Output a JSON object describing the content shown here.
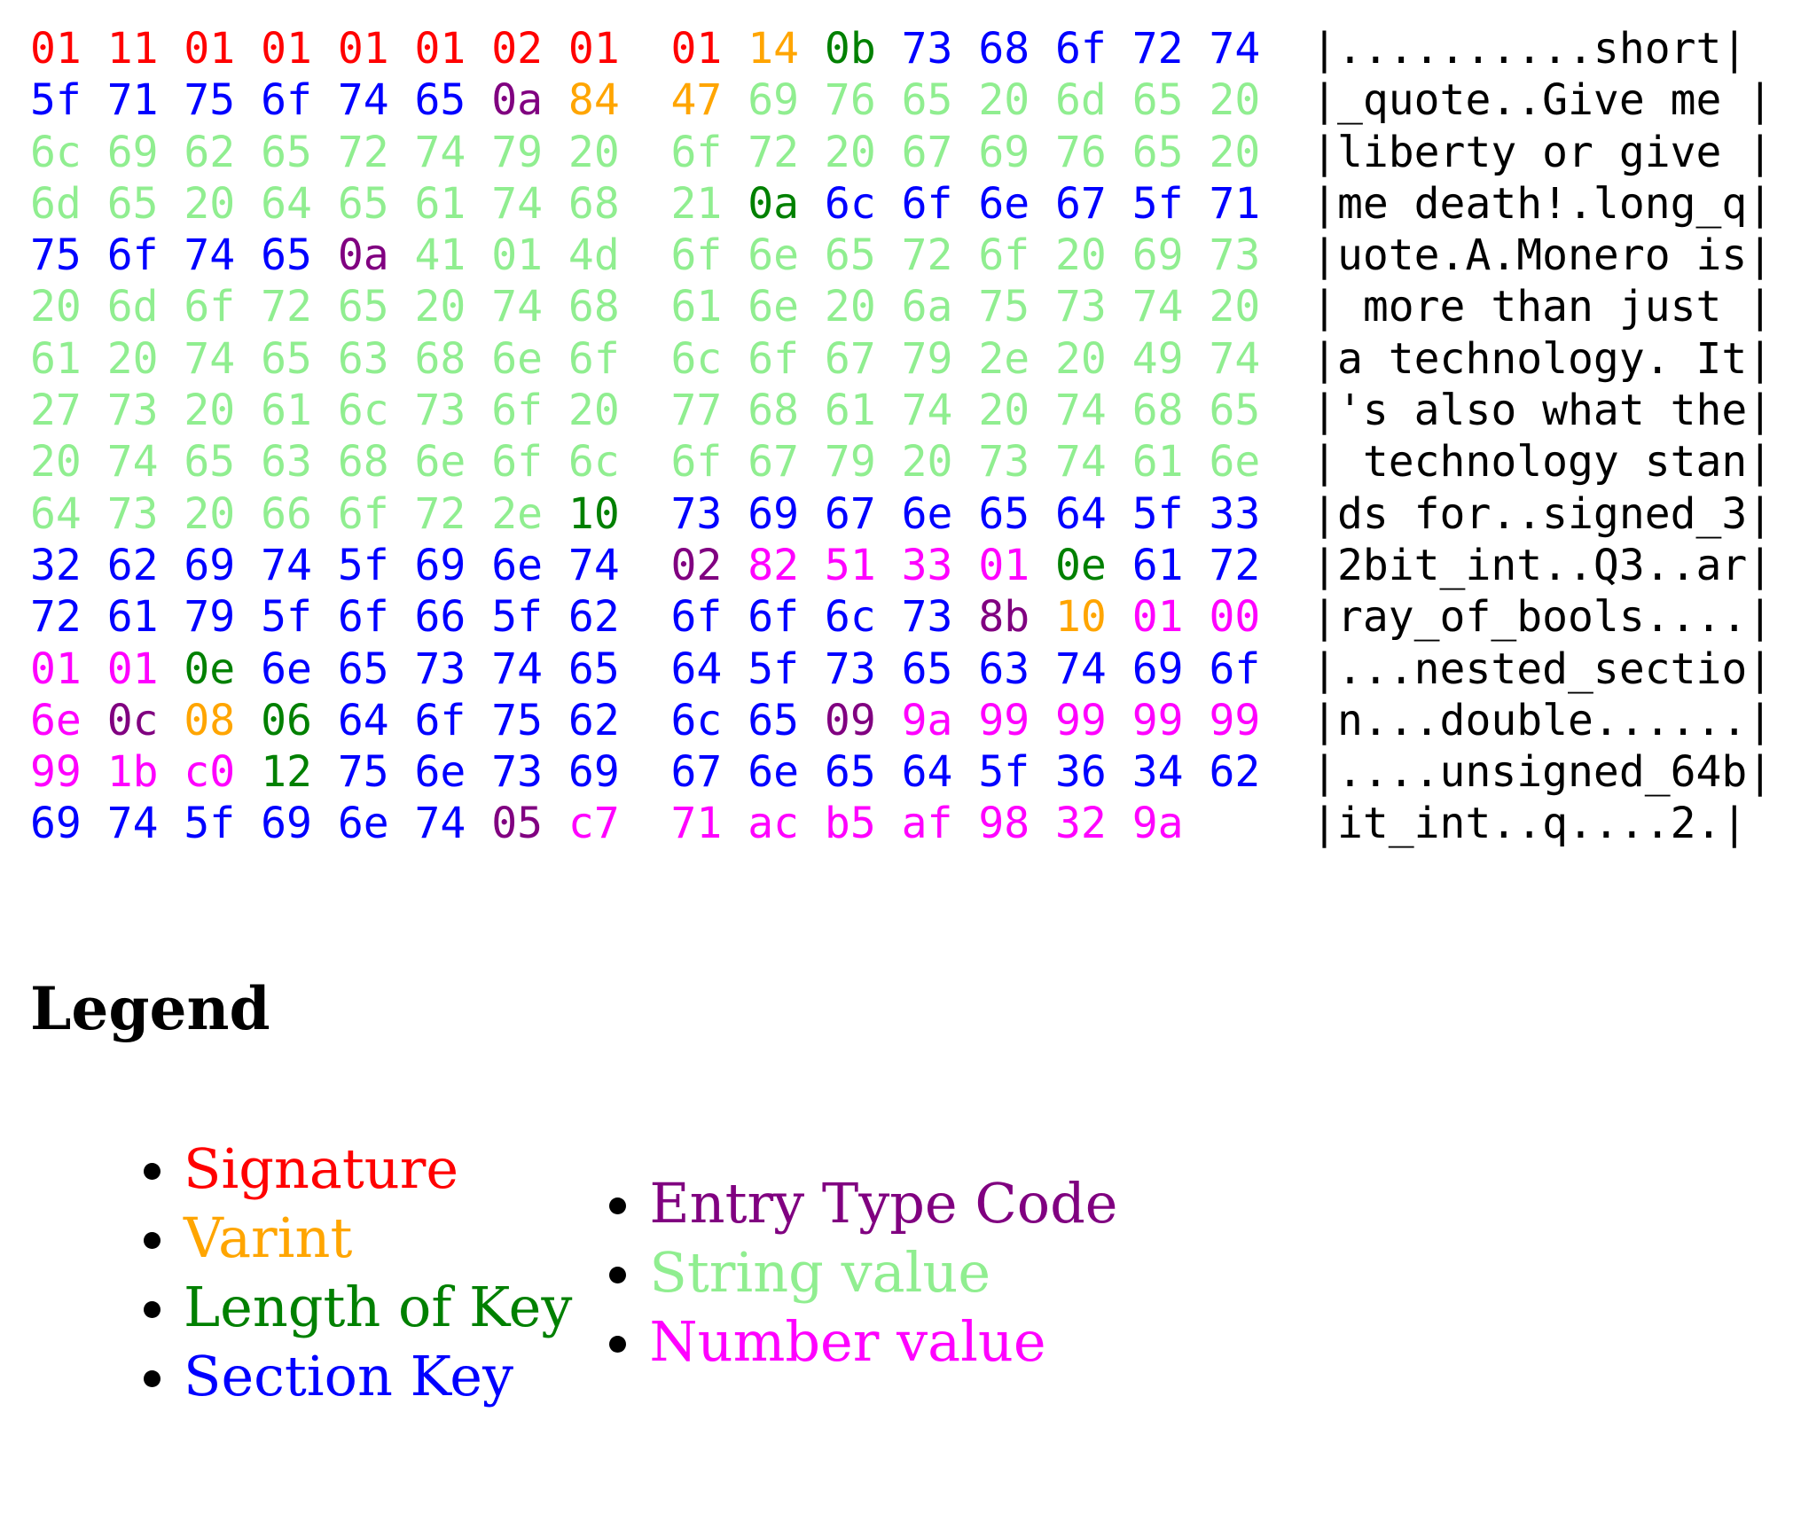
{
  "colors": {
    "S": "#ff0000",
    "V": "#ffa500",
    "L": "#008000",
    "K": "#0000ff",
    "T": "#800080",
    "s": "#90ee90",
    "N": "#ff00ff"
  },
  "hex_rows": [
    {
      "bytes": "01 11 01 01 01 01 02 01 01 14 0b 73 68 6f 72 74",
      "types": "SSSSSSSSSVLKKKKK",
      "ascii": "|..........short|"
    },
    {
      "bytes": "5f 71 75 6f 74 65 0a 84 47 69 76 65 20 6d 65 20",
      "types": "KKKKKKTVVsssssss",
      "ascii": "|_quote..Give me |"
    },
    {
      "bytes": "6c 69 62 65 72 74 79 20 6f 72 20 67 69 76 65 20",
      "types": "ssssssssssssssss",
      "ascii": "|liberty or give |"
    },
    {
      "bytes": "6d 65 20 64 65 61 74 68 21 0a 6c 6f 6e 67 5f 71",
      "types": "sssssssssLKKKKKK",
      "ascii": "|me death!.long_q|"
    },
    {
      "bytes": "75 6f 74 65 0a 41 01 4d 6f 6e 65 72 6f 20 69 73",
      "types": "KKKKTsssssssssss",
      "ascii": "|uote.A.Monero is|"
    },
    {
      "bytes": "20 6d 6f 72 65 20 74 68 61 6e 20 6a 75 73 74 20",
      "types": "ssssssssssssssss",
      "ascii": "| more than just |"
    },
    {
      "bytes": "61 20 74 65 63 68 6e 6f 6c 6f 67 79 2e 20 49 74",
      "types": "ssssssssssssssss",
      "ascii": "|a technology. It|"
    },
    {
      "bytes": "27 73 20 61 6c 73 6f 20 77 68 61 74 20 74 68 65",
      "types": "ssssssssssssssss",
      "ascii": "|'s also what the|"
    },
    {
      "bytes": "20 74 65 63 68 6e 6f 6c 6f 67 79 20 73 74 61 6e",
      "types": "ssssssssssssssss",
      "ascii": "| technology stan|"
    },
    {
      "bytes": "64 73 20 66 6f 72 2e 10 73 69 67 6e 65 64 5f 33",
      "types": "sssssssLKKKKKKKK",
      "ascii": "|ds for..signed_3|"
    },
    {
      "bytes": "32 62 69 74 5f 69 6e 74 02 82 51 33 01 0e 61 72",
      "types": "KKKKKKKKTNNNNLKK",
      "ascii": "|2bit_int..Q3..ar|"
    },
    {
      "bytes": "72 61 79 5f 6f 66 5f 62 6f 6f 6c 73 8b 10 01 00",
      "types": "KKKKKKKKKKKKTVNN",
      "ascii": "|ray_of_bools....|"
    },
    {
      "bytes": "01 01 0e 6e 65 73 74 65 64 5f 73 65 63 74 69 6f",
      "types": "NNLKKKKKKKKKKKKK",
      "ascii": "|...nested_sectio|"
    },
    {
      "bytes": "6e 0c 08 06 64 6f 75 62 6c 65 09 9a 99 99 99 99",
      "types": "NTVLKKKKKKTNNNNN",
      "ascii": "|n...double......|"
    },
    {
      "bytes": "99 1b c0 12 75 6e 73 69 67 6e 65 64 5f 36 34 62",
      "types": "NNNLKKKKKKKKKKKK",
      "ascii": "|....unsigned_64b|"
    },
    {
      "bytes": "69 74 5f 69 6e 74 05 c7 71 ac b5 af 98 32 9a",
      "types": "KKKKKKTNNNNNNNN",
      "ascii": "|it_int..q....2.|"
    }
  ],
  "legend": {
    "title": "Legend",
    "left": [
      {
        "label": "Signature",
        "type": "S"
      },
      {
        "label": "Varint",
        "type": "V"
      },
      {
        "label": "Length of Key",
        "type": "L"
      },
      {
        "label": "Section Key",
        "type": "K"
      }
    ],
    "right": [
      {
        "label": "Entry Type Code",
        "type": "T"
      },
      {
        "label": "String value",
        "type": "s"
      },
      {
        "label": "Number value",
        "type": "N"
      }
    ]
  }
}
